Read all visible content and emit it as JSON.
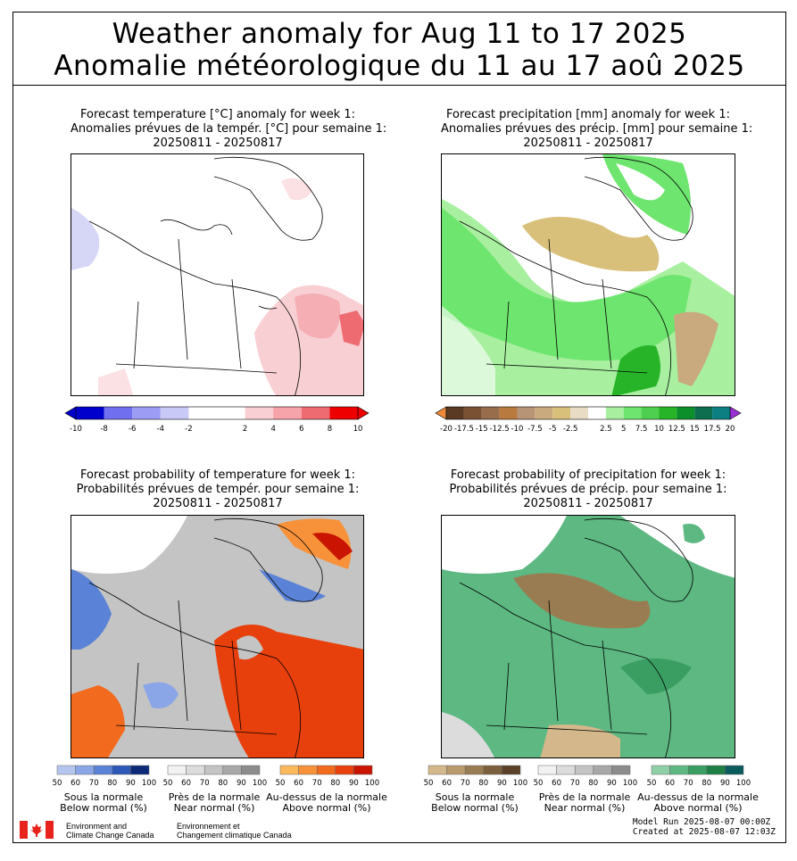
{
  "title": {
    "line1": "Weather anomaly for Aug 11 to 17 2025",
    "line2": "Anomalie météorologique du 11 au 17 aoû 2025"
  },
  "panels": {
    "temp_anomaly": {
      "title_en": "Forecast temperature [°C] anomaly for week 1:",
      "title_fr": "Anomalies prévues de la tempér. [°C] pour semaine 1:",
      "period": "20250811 - 20250817",
      "colorbar": {
        "ticks": [
          "-10",
          "-8",
          "-6",
          "-4",
          "-2",
          "2",
          "4",
          "6",
          "8",
          "10"
        ],
        "colors": [
          "#0000cc",
          "#6f6ff0",
          "#9c9cf5",
          "#c9c9f8",
          "#ffffff",
          "#ffffff",
          "#f9cfd3",
          "#f6a3a9",
          "#ef6b72",
          "#ee0000"
        ]
      }
    },
    "precip_anomaly": {
      "title_en": "Forecast precipitation [mm] anomaly for week 1:",
      "title_fr": "Anomalies prévues des précip. [mm] pour semaine 1:",
      "period": "20250811 - 20250817",
      "colorbar": {
        "ticks": [
          "-20",
          "-17.5",
          "-15",
          "-12.5",
          "-10",
          "-7.5",
          "-5",
          "-2.5",
          "2.5",
          "5",
          "7.5",
          "10",
          "12.5",
          "15",
          "17.5",
          "20"
        ],
        "colors": [
          "#5a3a22",
          "#7a5233",
          "#986d4c",
          "#b97a3f",
          "#b89477",
          "#c8aa7e",
          "#d9c07a",
          "#e8dcc5",
          "#ffffff",
          "#a8f0a0",
          "#6ee56e",
          "#4fcf4f",
          "#28b428",
          "#0a8f2a",
          "#0c6e4e",
          "#0b7f82"
        ],
        "ext_low": "#ee8a3a",
        "ext_high": "#9a2fd4"
      }
    },
    "temp_prob": {
      "title_en": "Forecast probability of temperature for week 1:",
      "title_fr": "Probabilités prévues de tempér. pour semaine 1:",
      "period": "20250811 - 20250817",
      "legends": [
        {
          "fr": "Sous la normale",
          "en": "Below normal (%)",
          "colors": [
            "#b5c6ee",
            "#8aa6e6",
            "#5a82d6",
            "#2e58b8",
            "#0d2a78"
          ]
        },
        {
          "fr": "Près de la normale",
          "en": "Near normal (%)",
          "colors": [
            "#f2f2f2",
            "#dcdcdc",
            "#c4c4c4",
            "#a8a8a8",
            "#8c8c8c"
          ]
        },
        {
          "fr": "Au-dessus de la normale",
          "en": "Above normal (%)",
          "colors": [
            "#fbb95c",
            "#f7923a",
            "#f26a1e",
            "#e8400c",
            "#c81400"
          ]
        }
      ]
    },
    "precip_prob": {
      "title_en": "Forecast probability of precipitation for week 1:",
      "title_fr": "Probabilités prévues de précip. pour semaine 1:",
      "period": "20250811 - 20250817",
      "legends": [
        {
          "fr": "Sous la normale",
          "en": "Below normal (%)",
          "colors": [
            "#d4b88c",
            "#b89a6c",
            "#9a7c52",
            "#7c5f3c",
            "#5a4128"
          ]
        },
        {
          "fr": "Près de la normale",
          "en": "Near normal (%)",
          "colors": [
            "#f2f2f2",
            "#dcdcdc",
            "#c4c4c4",
            "#a8a8a8",
            "#8c8c8c"
          ]
        },
        {
          "fr": "Au-dessus de la normale",
          "en": "Above normal (%)",
          "colors": [
            "#8fd0a6",
            "#5db882",
            "#3a9e62",
            "#1e7f45",
            "#0b5c5c"
          ]
        }
      ]
    }
  },
  "scale_ticks": [
    "50",
    "60",
    "70",
    "80",
    "90",
    "100"
  ],
  "footer": {
    "org_en_1": "Environment and",
    "org_en_2": "Climate Change Canada",
    "org_fr_1": "Environnement et",
    "org_fr_2": "Changement climatique Canada",
    "model_run": "Model Run 2025-08-07 00:00Z",
    "created_at": "Created at 2025-08-07 12:03Z"
  },
  "flag_colors": {
    "red": "#e8231d",
    "white": "#ffffff"
  }
}
